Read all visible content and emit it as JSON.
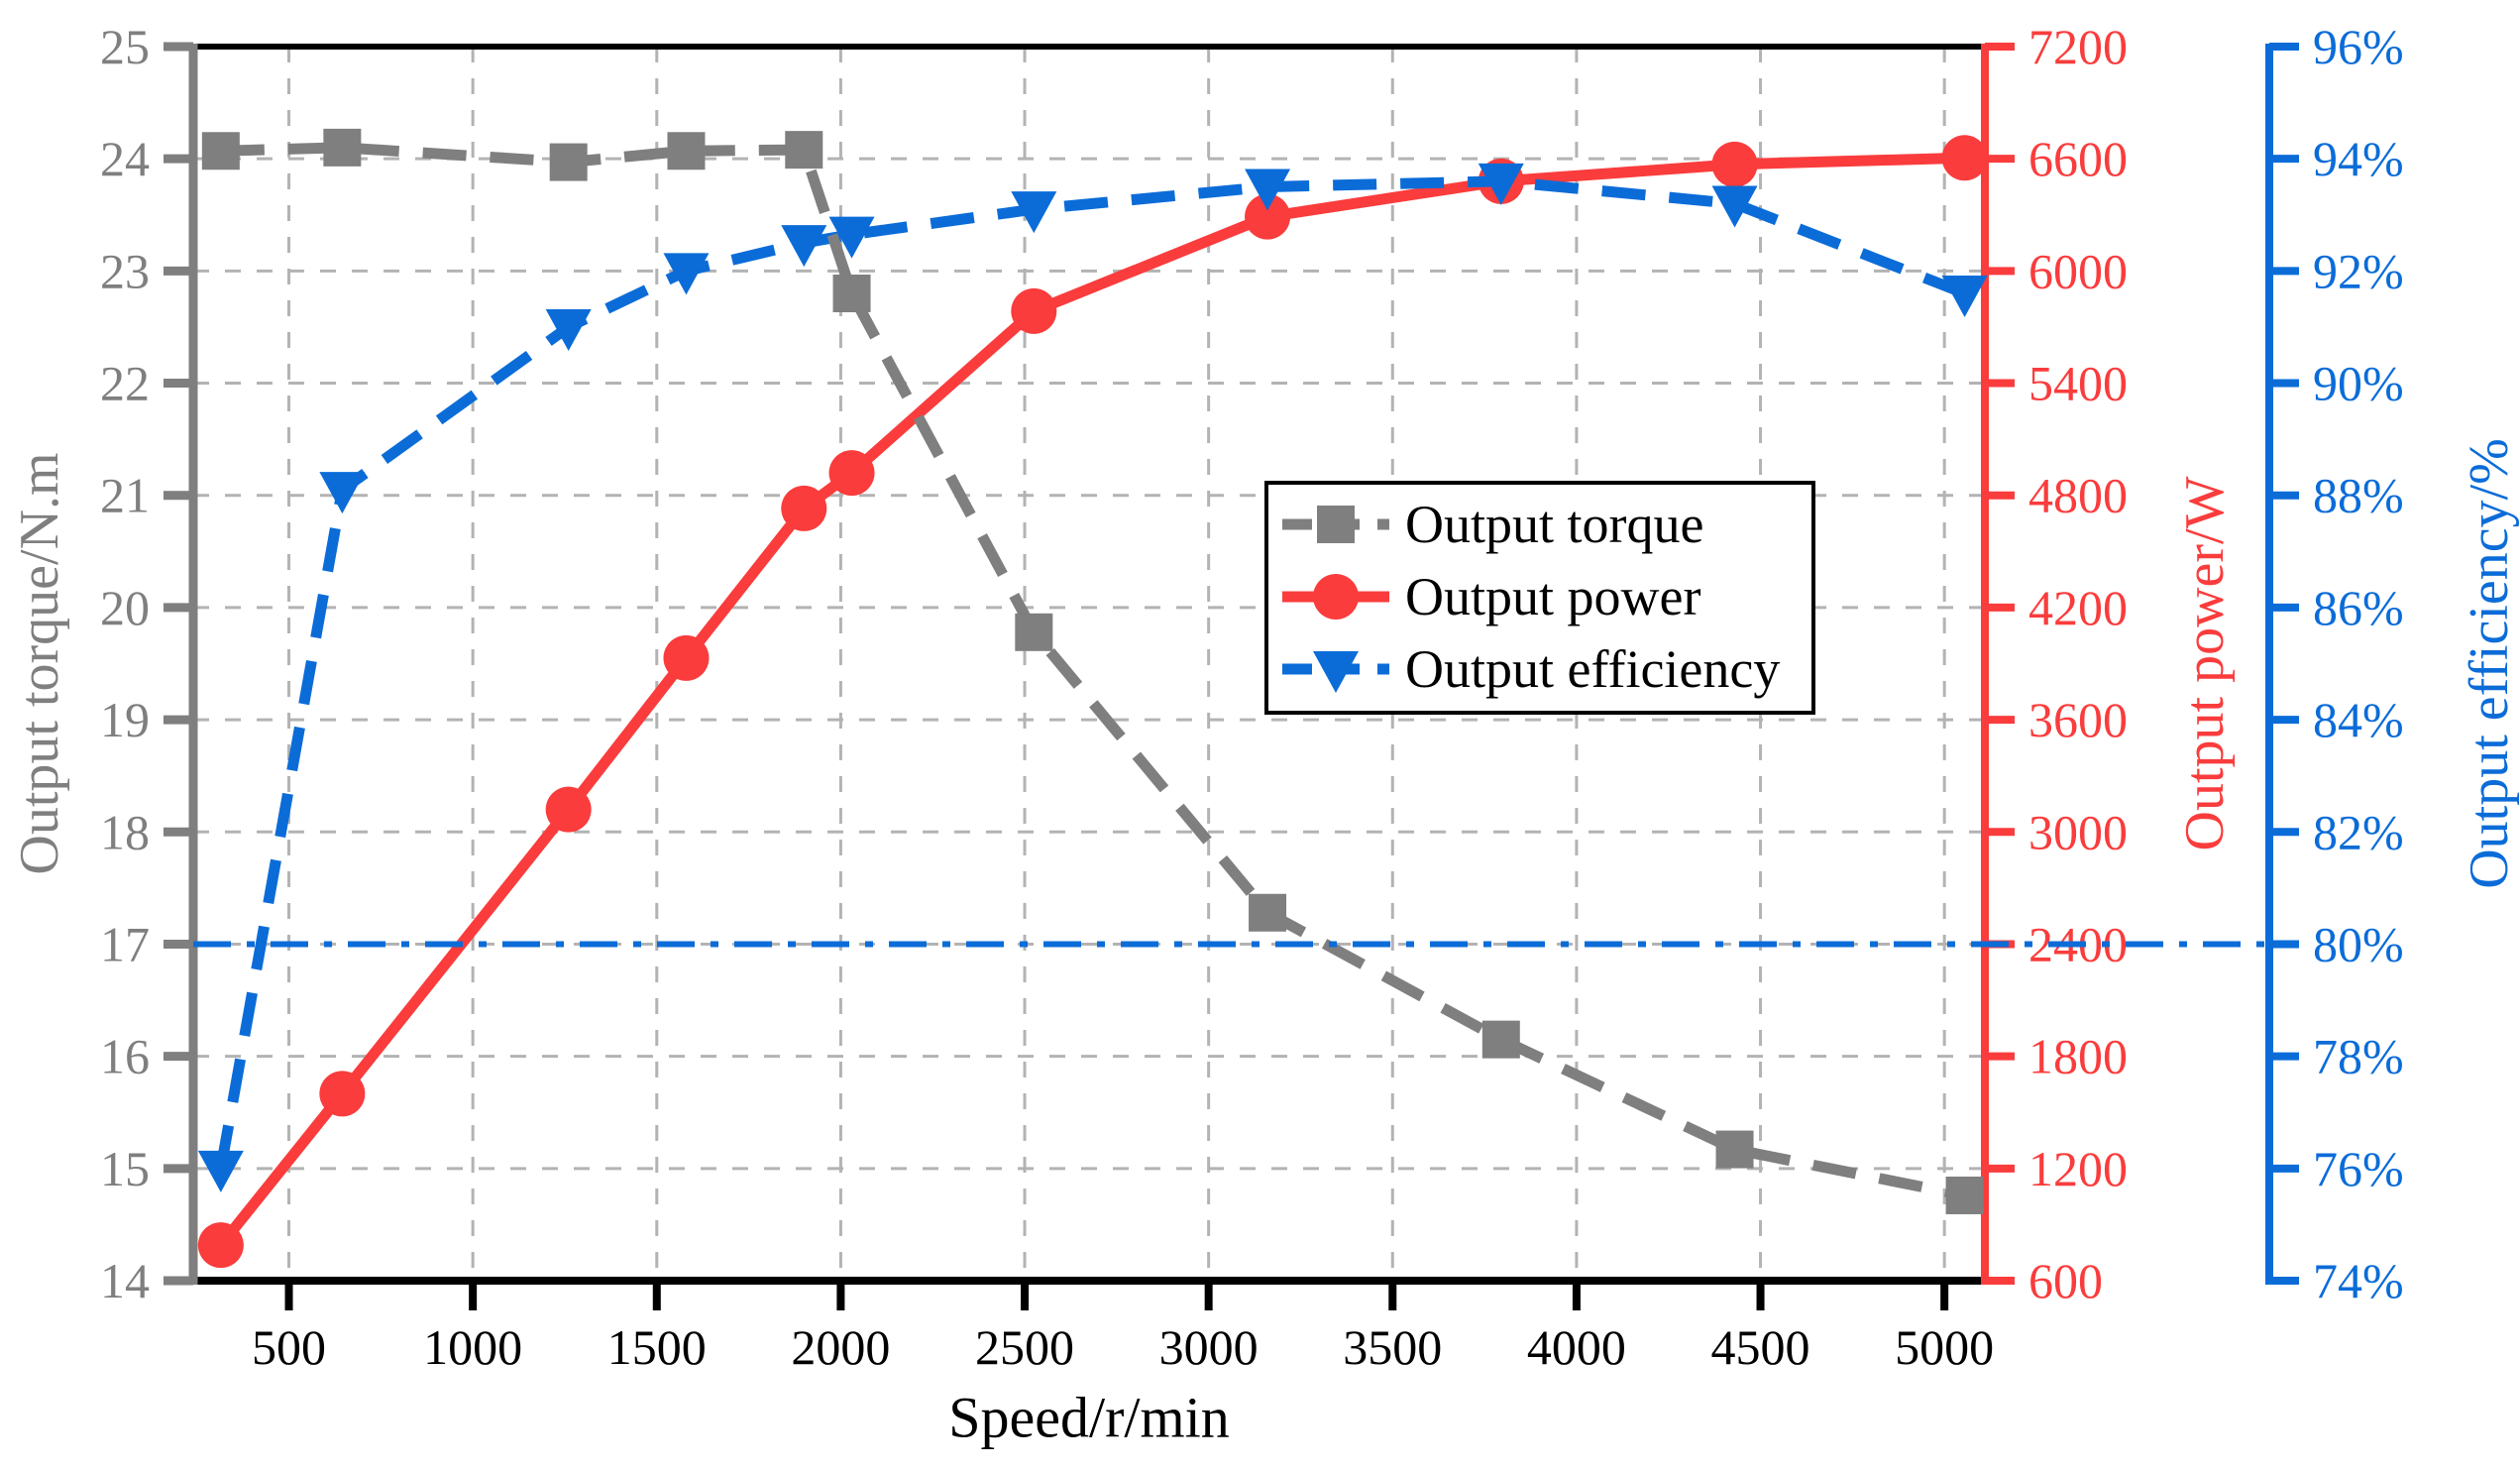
{
  "chart_data": {
    "type": "line",
    "title": "",
    "xlabel": "Speed/r/min",
    "grid": true,
    "legend_position": "upper center-right box",
    "x_axis": {
      "min": 240,
      "max": 5110,
      "ticks": [
        500,
        1000,
        1500,
        2000,
        2500,
        3000,
        3500,
        4000,
        4500,
        5000
      ],
      "color": "#000000"
    },
    "axes": {
      "torque": {
        "label": "Output torque/N.m",
        "color": "#7f7f7f",
        "min": 14,
        "max": 25,
        "ticks": [
          14,
          15,
          16,
          17,
          18,
          19,
          20,
          21,
          22,
          23,
          24,
          25
        ],
        "suffix": ""
      },
      "power": {
        "label": "Output power/W",
        "color": "#fa3c3c",
        "min": 600,
        "max": 7200,
        "ticks": [
          600,
          1200,
          1800,
          2400,
          3000,
          3600,
          4200,
          4800,
          5400,
          6000,
          6600,
          7200
        ],
        "suffix": ""
      },
      "efficiency": {
        "label": "Output efficiency/%",
        "color": "#0b6cd8",
        "min": 74,
        "max": 96,
        "ticks": [
          74,
          76,
          78,
          80,
          82,
          84,
          86,
          88,
          90,
          92,
          94,
          96
        ],
        "suffix": "%"
      }
    },
    "x": [
      315,
      645,
      1260,
      1580,
      1900,
      2030,
      2525,
      3160,
      3795,
      4430,
      5055
    ],
    "series": [
      {
        "name": "Output torque",
        "axis": "torque",
        "color": "#7f7f7f",
        "marker": "square",
        "line_style": "dashed",
        "values": [
          24.07,
          24.1,
          23.97,
          24.07,
          24.08,
          22.8,
          19.78,
          17.28,
          16.15,
          15.17,
          14.76
        ]
      },
      {
        "name": "Output power",
        "axis": "power",
        "color": "#fa3c3c",
        "marker": "circle",
        "line_style": "solid",
        "values": [
          790,
          1600,
          3120,
          3930,
          4730,
          4920,
          5785,
          6290,
          6480,
          6570,
          6605
        ]
      },
      {
        "name": "Output efficiency",
        "axis": "efficiency",
        "color": "#0b6cd8",
        "marker": "triangle-down",
        "line_style": "dashed",
        "values": [
          76.0,
          88.1,
          91.0,
          92.0,
          92.5,
          92.65,
          93.1,
          93.5,
          93.6,
          93.2,
          91.6
        ]
      }
    ],
    "reference_line": {
      "axis": "efficiency",
      "value": 80,
      "style": "dash-dot",
      "color": "#0b6cd8"
    },
    "legend": {
      "items": [
        "Output torque",
        "Output power",
        "Output efficiency"
      ]
    }
  }
}
